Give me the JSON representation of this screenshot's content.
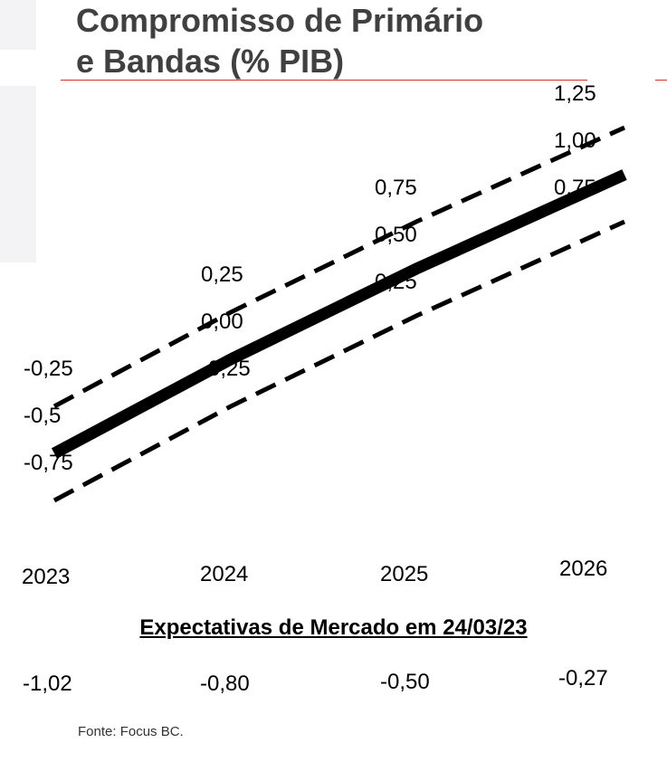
{
  "title_line1": "Compromisso de Primário",
  "title_line2": "e Bandas (% PIB)",
  "colors": {
    "title": "#404040",
    "accent_rule": "#d32f2f",
    "lines": "#000000",
    "background_shape": "#f3f3f5"
  },
  "chart_data": {
    "type": "line",
    "title": "Compromisso de Primário e Bandas (% PIB)",
    "categories": [
      "2023",
      "2024",
      "2025",
      "2026"
    ],
    "series": [
      {
        "name": "",
        "style": "dashed",
        "values": [
          -0.25,
          0.25,
          0.75,
          1.25
        ],
        "labels": [
          "-0,25",
          "0,25",
          "0,75",
          "1,25"
        ]
      },
      {
        "name": "",
        "style": "solid-thick",
        "values": [
          -0.5,
          0.0,
          0.5,
          1.0
        ],
        "labels": [
          "-0,5",
          "0,00",
          "0,50",
          "1,00"
        ]
      },
      {
        "name": "",
        "style": "dashed",
        "values": [
          -0.75,
          -0.25,
          0.25,
          0.75
        ],
        "labels": [
          "-0,75",
          "-0,25",
          "0,25",
          "0,75"
        ]
      }
    ],
    "grid": false,
    "legend": "none"
  },
  "market": {
    "heading": "Expectativas de Mercado em 24/03/23",
    "values": [
      "-1,02",
      "-0,80",
      "-0,50",
      "-0,27"
    ]
  },
  "source": "Fonte: Focus BC."
}
